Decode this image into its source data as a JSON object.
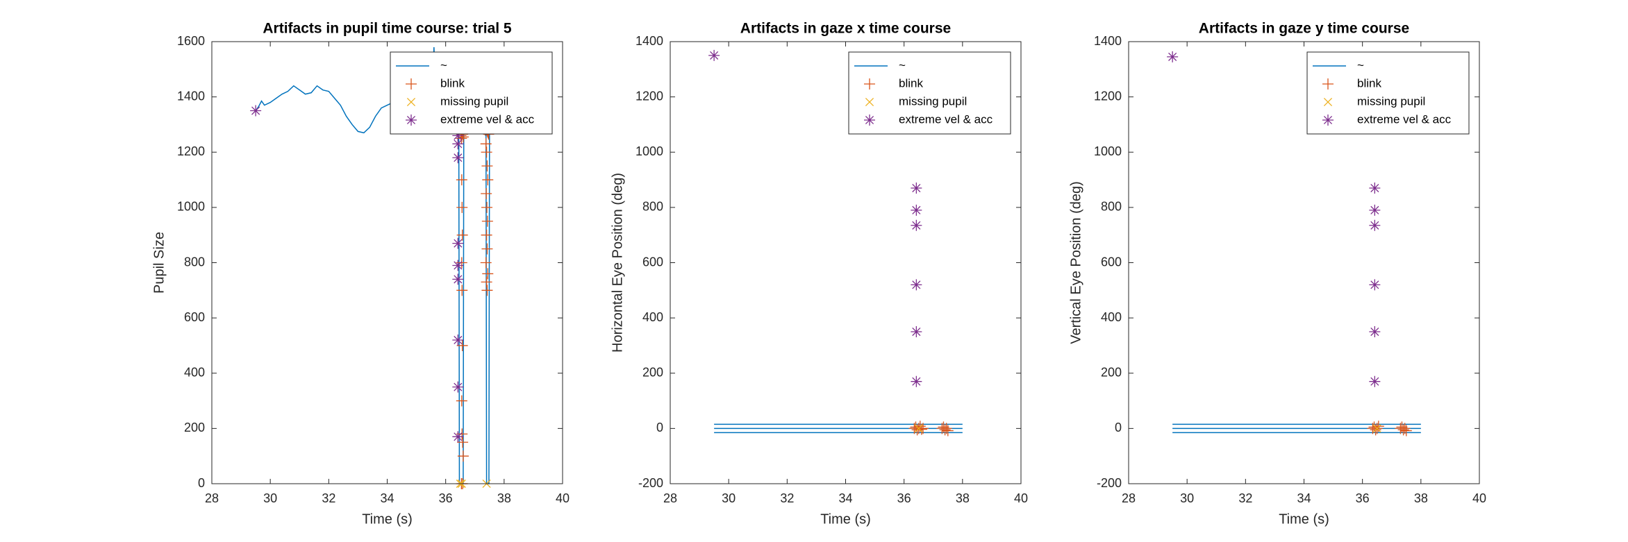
{
  "chart_data": [
    {
      "type": "line",
      "title": "Artifacts in pupil time course: trial 5",
      "xlabel": "Time (s)",
      "ylabel": "Pupil Size",
      "xlim": [
        28,
        40
      ],
      "xticks": [
        28,
        30,
        32,
        34,
        36,
        38,
        40
      ],
      "ylim": [
        0,
        1600
      ],
      "yticks": [
        0,
        200,
        400,
        600,
        800,
        1000,
        1200,
        1400,
        1600
      ],
      "legend": "northeast",
      "series": [
        {
          "name": "~",
          "color": "#0072BD",
          "marker": "none",
          "x": [
            29.5,
            29.6,
            29.7,
            29.8,
            30,
            30.2,
            30.4,
            30.6,
            30.8,
            31,
            31.2,
            31.4,
            31.6,
            31.8,
            32,
            32.2,
            32.4,
            32.6,
            32.8,
            33,
            33.2,
            33.4,
            33.6,
            33.8,
            34,
            34.2,
            34.4,
            34.6,
            34.8,
            35,
            35.2,
            35.4,
            35.55,
            35.6,
            35.65,
            35.8,
            36,
            36.2,
            36.4,
            36.45,
            36.47,
            36.6,
            36.62,
            36.8,
            37,
            37.2,
            37.38,
            37.4,
            37.48,
            37.5,
            37.7,
            37.9
          ],
          "values": [
            1350,
            1365,
            1385,
            1370,
            1380,
            1395,
            1410,
            1420,
            1440,
            1425,
            1410,
            1415,
            1440,
            1425,
            1420,
            1395,
            1370,
            1330,
            1300,
            1275,
            1270,
            1290,
            1330,
            1360,
            1370,
            1380,
            1375,
            1365,
            1380,
            1400,
            1390,
            1410,
            1430,
            1580,
            1420,
            1380,
            1330,
            1300,
            1280,
            1270,
            0,
            0,
            1280,
            1280,
            1275,
            1280,
            1280,
            0,
            0,
            1270,
            1280,
            1290
          ]
        },
        {
          "name": "blink",
          "color": "#D95319",
          "marker": "+",
          "x": [
            36.52,
            36.54,
            36.56,
            36.58,
            36.6,
            36.52,
            36.54,
            36.56,
            36.58,
            36.6,
            36.55,
            36.56,
            36.57,
            36.55,
            36.56,
            36.57,
            36.55,
            36.56,
            36.58,
            36.6,
            37.35,
            37.37,
            37.39,
            37.41,
            37.43,
            37.45,
            37.47,
            37.38,
            37.4,
            37.42,
            37.44,
            37.39,
            37.41,
            37.43,
            37.4,
            37.42,
            37.38,
            37.44,
            37.4,
            37.42,
            36.54,
            36.58
          ],
          "values": [
            1280,
            1285,
            1290,
            1280,
            1275,
            1260,
            1250,
            1270,
            1265,
            1255,
            1100,
            1000,
            900,
            800,
            700,
            500,
            300,
            180,
            150,
            100,
            1280,
            1285,
            1290,
            1280,
            1275,
            1270,
            1265,
            1230,
            1200,
            1150,
            1100,
            1050,
            1000,
            950,
            900,
            850,
            800,
            760,
            730,
            700,
            0,
            0
          ]
        },
        {
          "name": "missing pupil",
          "color": "#EDB120",
          "marker": "x",
          "x": [
            36.5,
            36.55,
            37.4
          ],
          "values": [
            0,
            0,
            0
          ]
        },
        {
          "name": "extreme vel & acc",
          "color": "#7E2F8E",
          "marker": "*",
          "x": [
            29.5,
            36.42,
            36.42,
            36.42,
            36.42,
            36.42,
            36.42,
            36.42,
            36.42,
            36.42
          ],
          "values": [
            1350,
            1260,
            1230,
            1180,
            870,
            790,
            740,
            520,
            350,
            170
          ]
        }
      ]
    },
    {
      "type": "line",
      "title": "Artifacts in gaze x time course",
      "xlabel": "Time (s)",
      "ylabel": "Horizontal Eye Position (deg)",
      "xlim": [
        28,
        40
      ],
      "xticks": [
        28,
        30,
        32,
        34,
        36,
        38,
        40
      ],
      "ylim": [
        -200,
        1400
      ],
      "yticks": [
        -200,
        0,
        200,
        400,
        600,
        800,
        1000,
        1200,
        1400
      ],
      "legend": "northeast",
      "series": [
        {
          "name": "~",
          "color": "#0072BD",
          "marker": "none",
          "x": [
            29.5,
            38,
            null,
            29.5,
            38,
            null,
            29.5,
            38
          ],
          "values": [
            15,
            15,
            null,
            0,
            0,
            null,
            -15,
            -15
          ]
        },
        {
          "name": "blink",
          "color": "#D95319",
          "marker": "+",
          "x": [
            36.35,
            36.4,
            36.45,
            36.5,
            36.55,
            36.6,
            36.65,
            37.3,
            37.35,
            37.4,
            37.45,
            37.5
          ],
          "values": [
            0,
            5,
            -5,
            0,
            8,
            -3,
            0,
            0,
            5,
            -5,
            0,
            -8
          ]
        },
        {
          "name": "missing pupil",
          "color": "#EDB120",
          "marker": "x",
          "x": [
            36.5
          ],
          "values": [
            0
          ]
        },
        {
          "name": "extreme vel & acc",
          "color": "#7E2F8E",
          "marker": "*",
          "x": [
            29.5,
            36.42,
            36.42,
            36.42,
            36.42,
            36.42,
            36.42
          ],
          "values": [
            1350,
            870,
            790,
            735,
            520,
            350,
            170
          ]
        }
      ]
    },
    {
      "type": "line",
      "title": "Artifacts in gaze y time course",
      "xlabel": "Time (s)",
      "ylabel": "Vertical Eye Position (deg)",
      "xlim": [
        28,
        40
      ],
      "xticks": [
        28,
        30,
        32,
        34,
        36,
        38,
        40
      ],
      "ylim": [
        -200,
        1400
      ],
      "yticks": [
        -200,
        0,
        200,
        400,
        600,
        800,
        1000,
        1200,
        1400
      ],
      "legend": "northeast",
      "series": [
        {
          "name": "~",
          "color": "#0072BD",
          "marker": "none",
          "x": [
            29.5,
            38,
            null,
            29.5,
            38,
            null,
            29.5,
            38
          ],
          "values": [
            15,
            15,
            null,
            0,
            0,
            null,
            -15,
            -15
          ]
        },
        {
          "name": "blink",
          "color": "#D95319",
          "marker": "+",
          "x": [
            36.35,
            36.4,
            36.45,
            36.5,
            36.55,
            37.3,
            37.35,
            37.4,
            37.45,
            37.5
          ],
          "values": [
            0,
            5,
            -5,
            0,
            8,
            0,
            5,
            -5,
            0,
            -8
          ]
        },
        {
          "name": "missing pupil",
          "color": "#EDB120",
          "marker": "x",
          "x": [
            36.5
          ],
          "values": [
            0
          ]
        },
        {
          "name": "extreme vel & acc",
          "color": "#7E2F8E",
          "marker": "*",
          "x": [
            29.5,
            36.42,
            36.42,
            36.42,
            36.42,
            36.42,
            36.42
          ],
          "values": [
            1345,
            870,
            790,
            735,
            520,
            350,
            170
          ]
        }
      ]
    }
  ]
}
